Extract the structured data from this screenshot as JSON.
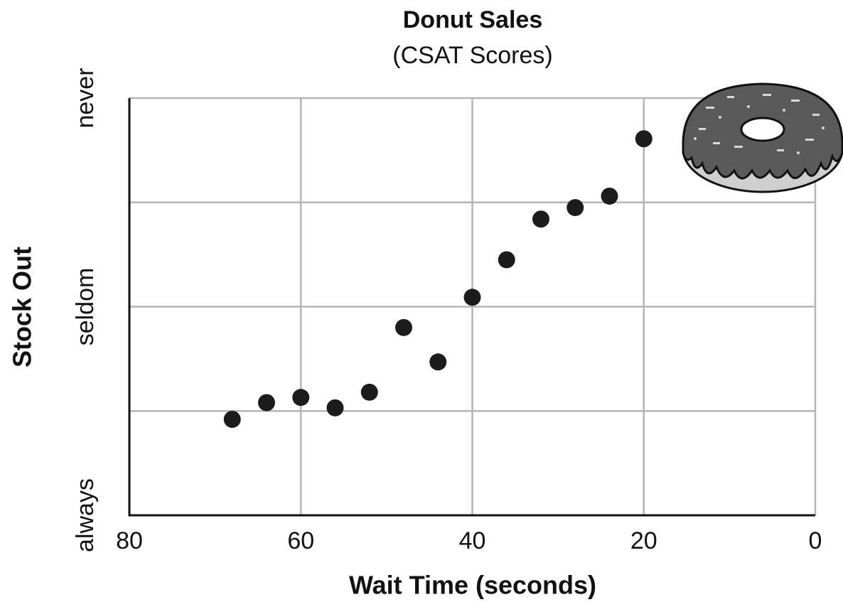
{
  "chart_data": {
    "type": "scatter",
    "title": "Donut Sales",
    "subtitle": "(CSAT Scores)",
    "x_label": "Wait Time (seconds)",
    "y_label": "Stock Out",
    "x": [
      20,
      24,
      28,
      32,
      36,
      40,
      44,
      48,
      52,
      56,
      60,
      64,
      68
    ],
    "values": [
      3.61,
      3.06,
      2.95,
      2.84,
      2.45,
      2.09,
      1.47,
      1.8,
      1.18,
      1.03,
      1.13,
      1.08,
      0.92
    ],
    "color": "#1c1c1c",
    "xlim": [
      80,
      0
    ],
    "xticks": [
      80,
      60,
      40,
      20,
      0
    ],
    "ylim": [
      0,
      4
    ],
    "yticks": [
      {
        "value": 0,
        "label": "always"
      },
      {
        "value": 1,
        "label": null
      },
      {
        "value": 2,
        "label": "seldom"
      },
      {
        "value": 3,
        "label": null
      },
      {
        "value": 4,
        "label": "never"
      }
    ],
    "grid": true
  }
}
